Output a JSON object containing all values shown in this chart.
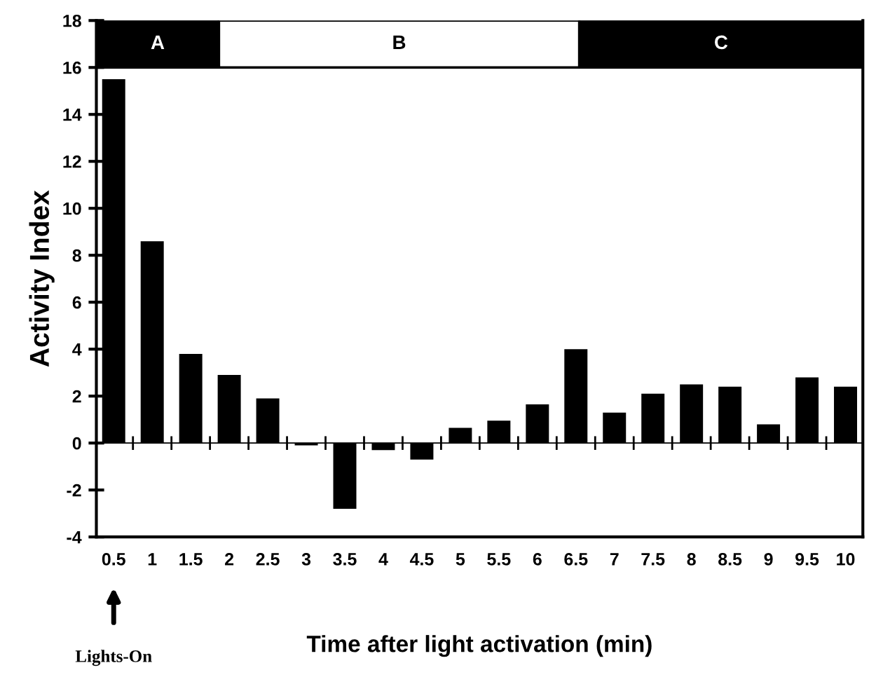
{
  "chart_data": {
    "type": "bar",
    "xlabel": "Time after light activation (min)",
    "ylabel": "Activity Index",
    "categories": [
      "0.5",
      "1",
      "1.5",
      "2",
      "2.5",
      "3",
      "3.5",
      "4",
      "4.5",
      "5",
      "5.5",
      "6",
      "6.5",
      "7",
      "7.5",
      "8",
      "8.5",
      "9",
      "9.5",
      "10"
    ],
    "values": [
      15.5,
      8.6,
      3.8,
      2.9,
      1.9,
      -0.1,
      -2.8,
      -0.3,
      -0.7,
      0.65,
      0.95,
      1.65,
      4.0,
      1.3,
      2.1,
      2.5,
      2.4,
      0.8,
      2.8,
      2.4
    ],
    "color": "#000000",
    "ylim": [
      -4,
      18
    ],
    "yticks": [
      -4,
      -2,
      0,
      2,
      4,
      6,
      8,
      10,
      12,
      14,
      16,
      18
    ],
    "ref_lines": [
      {
        "axis": "y",
        "value": 0,
        "color": "#000000"
      }
    ],
    "annotations": [
      "A",
      "B",
      "C",
      "Lights-On"
    ],
    "grid": false,
    "legend": false
  }
}
